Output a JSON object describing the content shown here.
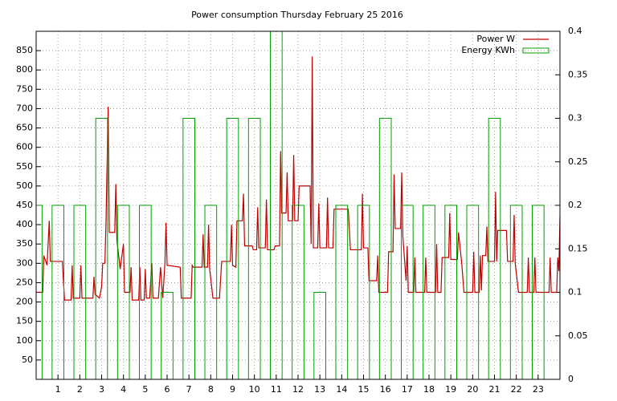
{
  "chart_data": {
    "type": "line",
    "title": "Power consumption Thursday February 25 2016",
    "xlim": [
      0,
      24
    ],
    "xticks": [
      1,
      2,
      3,
      4,
      5,
      6,
      7,
      8,
      9,
      10,
      11,
      12,
      13,
      14,
      15,
      16,
      17,
      18,
      19,
      20,
      21,
      22,
      23
    ],
    "ylim": [
      0,
      900
    ],
    "yticks": [
      50,
      100,
      150,
      200,
      250,
      300,
      350,
      400,
      450,
      500,
      550,
      600,
      650,
      700,
      750,
      800,
      850
    ],
    "y2lim": [
      0,
      0.4
    ],
    "y2ticks": [
      0,
      0.05,
      0.1,
      0.15,
      0.2,
      0.25,
      0.3,
      0.35,
      0.4
    ],
    "grid": true,
    "legend": "top-right",
    "series": [
      {
        "name": "Power W",
        "color": "#c00000",
        "style": "line",
        "x": [
          0,
          0.3,
          0.35,
          0.5,
          0.6,
          0.65,
          1.2,
          1.3,
          1.6,
          1.65,
          1.7,
          2.0,
          2.05,
          2.1,
          2.6,
          2.65,
          2.7,
          2.9,
          3.0,
          3.05,
          3.15,
          3.2,
          3.3,
          3.35,
          3.6,
          3.65,
          3.7,
          3.85,
          4.0,
          4.05,
          4.3,
          4.35,
          4.4,
          4.7,
          4.75,
          4.8,
          4.95,
          5.0,
          5.05,
          5.2,
          5.3,
          5.35,
          5.6,
          5.7,
          5.8,
          5.9,
          5.95,
          6.0,
          6.6,
          6.65,
          7.1,
          7.15,
          7.2,
          7.6,
          7.65,
          7.7,
          7.85,
          7.9,
          7.95,
          8.1,
          8.4,
          8.5,
          8.9,
          8.95,
          9.0,
          9.15,
          9.2,
          9.45,
          9.5,
          9.55,
          9.9,
          9.95,
          10.1,
          10.15,
          10.2,
          10.5,
          10.55,
          10.6,
          10.9,
          10.95,
          11.15,
          11.2,
          11.25,
          11.45,
          11.5,
          11.55,
          11.75,
          11.8,
          11.85,
          12.0,
          12.05,
          12.55,
          12.6,
          12.65,
          12.7,
          12.9,
          12.95,
          13.0,
          13.3,
          13.35,
          13.4,
          13.6,
          13.65,
          14.3,
          14.4,
          14.9,
          14.95,
          15.0,
          15.2,
          15.25,
          15.6,
          15.65,
          15.7,
          16.1,
          16.15,
          16.35,
          16.4,
          16.45,
          16.7,
          16.75,
          16.8,
          16.95,
          17.0,
          17.05,
          17.3,
          17.35,
          17.4,
          17.8,
          17.85,
          17.9,
          18.3,
          18.35,
          18.4,
          18.55,
          18.6,
          18.9,
          18.95,
          19.0,
          19.3,
          19.35,
          19.5,
          19.6,
          20.0,
          20.05,
          20.1,
          20.3,
          20.35,
          20.4,
          20.45,
          20.6,
          20.65,
          20.7,
          21.0,
          21.05,
          21.1,
          21.15,
          21.55,
          21.6,
          21.85,
          21.9,
          21.95,
          22.1,
          22.5,
          22.55,
          22.6,
          22.8,
          22.85,
          22.9,
          23.5,
          23.55,
          23.6,
          23.85,
          23.9,
          23.95,
          24.0
        ],
        "values": [
          225,
          225,
          320,
          295,
          410,
          305,
          305,
          205,
          205,
          295,
          210,
          210,
          295,
          210,
          210,
          265,
          220,
          210,
          240,
          300,
          300,
          405,
          705,
          380,
          380,
          505,
          360,
          285,
          350,
          225,
          225,
          290,
          205,
          205,
          290,
          205,
          205,
          285,
          210,
          210,
          300,
          210,
          210,
          290,
          210,
          300,
          405,
          295,
          290,
          210,
          210,
          295,
          290,
          290,
          375,
          290,
          290,
          400,
          285,
          210,
          210,
          305,
          305,
          400,
          295,
          290,
          410,
          410,
          480,
          345,
          345,
          335,
          335,
          445,
          340,
          340,
          465,
          335,
          335,
          345,
          345,
          590,
          430,
          430,
          535,
          410,
          410,
          580,
          410,
          410,
          500,
          500,
          350,
          835,
          340,
          340,
          455,
          340,
          340,
          470,
          340,
          340,
          440,
          440,
          335,
          335,
          480,
          340,
          340,
          255,
          255,
          320,
          225,
          225,
          330,
          330,
          530,
          390,
          390,
          535,
          370,
          255,
          345,
          225,
          225,
          315,
          225,
          225,
          315,
          225,
          225,
          350,
          225,
          225,
          315,
          315,
          430,
          310,
          310,
          380,
          300,
          225,
          225,
          330,
          225,
          225,
          320,
          230,
          320,
          320,
          395,
          305,
          305,
          485,
          305,
          385,
          385,
          305,
          305,
          425,
          300,
          225,
          225,
          315,
          225,
          225,
          315,
          225,
          225,
          315,
          225,
          225,
          315,
          280,
          420
        ]
      },
      {
        "name": "Energy KWh",
        "color": "#00a000",
        "style": "boxes",
        "axis": "y2",
        "x": [
          0,
          1,
          2,
          3,
          4,
          5,
          6,
          7,
          8,
          9,
          10,
          11,
          12,
          13,
          14,
          15,
          16,
          17,
          18,
          19,
          20,
          21,
          22,
          23
        ],
        "values": [
          0.2,
          0.2,
          0.2,
          0.3,
          0.2,
          0.2,
          0.1,
          0.3,
          0.2,
          0.3,
          0.3,
          0.4,
          0.2,
          0.1,
          0.2,
          0.2,
          0.3,
          0.2,
          0.2,
          0.2,
          0.2,
          0.3,
          0.2,
          0.2
        ]
      }
    ]
  }
}
